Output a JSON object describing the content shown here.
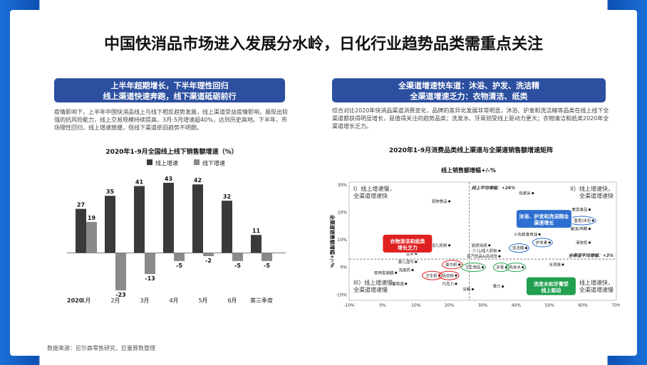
{
  "title": "中国快消品市场进入发展分水岭，日化行业趋势品类需重点关注",
  "left": {
    "box_line1": "上半年超期增长，下半年理性回归",
    "box_line2": "线上渠道快速奔跑，线下渠道砥砺前行",
    "paragraph": "疫情影响下，上半年中国快消品线上与线下相反趋势发展，线上渠道受益疫情影响，展现出较强的抗风险能力，线上交易规模持续提高，3月-5月增速超40%，达到历史高地。下半年，市场理性回归，线上增速放缓，但线下渠道依旧趋势不明朗。"
  },
  "right": {
    "box_line1": "全渠道增速快车道：沐浴、护发、洗洁精",
    "box_line2": "全渠道增速乏力：衣物清洁、纸类",
    "paragraph": "综合对比2020年快消品渠道消费变化，品牌的差异化发展非常明显，沐浴、护发和洗洁精等品类在线上线下全渠道都获得明显增长，是值得关注的趋势品类；洗发水、牙膏则受线上驱动力更大；衣物清洁和纸类2020年全渠道增长乏力。"
  },
  "source": "数据来源：尼尔森零售研究，巨量算数整理",
  "colors": {
    "online": "#3a3a3a",
    "offline": "#8a8a8a",
    "box": "#2c4fa0",
    "red": "#e02020",
    "green": "#22a050",
    "blue": "#2d6fd0"
  },
  "chart_data": [
    {
      "type": "bar",
      "title": "2020年1-9月全国线上线下销售额增速（%）",
      "categories": [
        "1月",
        "2月",
        "3月",
        "4月",
        "5月",
        "6月",
        "第三季度"
      ],
      "year_label": "2020",
      "series": [
        {
          "name": "线上增速",
          "values": [
            27,
            35,
            41,
            43,
            42,
            32,
            11
          ]
        },
        {
          "name": "线下增速",
          "values": [
            19,
            -23,
            -13,
            -5,
            -2,
            -5,
            -5
          ]
        }
      ],
      "ylim": [
        -26,
        46
      ]
    },
    {
      "type": "scatter",
      "title": "2020年1-9月消费品类线上渠道与全渠道销售额增速矩阵",
      "xlabel": "线上销售额增幅+/-%",
      "ylabel": "全渠道销售额增幅+/-%",
      "x_ticks": [
        "-10%",
        "0%",
        "10%",
        "20%",
        "30%",
        "40%",
        "50%",
        "60%",
        "70%"
      ],
      "y_ticks": [
        "30%",
        "20%",
        "10%",
        "0%",
        "-10%"
      ],
      "xlim": [
        -10,
        70
      ],
      "ylim": [
        -12,
        31
      ],
      "online_avg_label": "线上平均增幅：+26%",
      "omni_avg_label": "全渠道平均增幅：+3%",
      "online_avg": 26,
      "omni_avg": 3,
      "quadrants": {
        "q1": "I）线上增速慢，全渠道增速快",
        "q2": "II）线上增速快，全渠道增速快",
        "q3": "III）线上增速慢，全渠道增速慢",
        "q4": "IV）线上增速快，全渠道增速慢"
      },
      "points": [
        {
          "label": "宠物食品",
          "x": 20,
          "y": 24
        },
        {
          "label": "包装米",
          "x": 45,
          "y": 27
        },
        {
          "label": "麦类食品",
          "x": 62,
          "y": 21
        },
        {
          "label": "香皂/沐浴",
          "x": 63,
          "y": 17
        },
        {
          "label": "酱油/鸡精",
          "x": 62,
          "y": 14
        },
        {
          "label": "小包装食用油",
          "x": 47,
          "y": 12
        },
        {
          "label": "护发素",
          "x": 50,
          "y": 9
        },
        {
          "label": "液体奶",
          "x": 62,
          "y": 9
        },
        {
          "label": "婴儿奶粉",
          "x": 20,
          "y": 8
        },
        {
          "label": "厨房用纸",
          "x": 32,
          "y": 8
        },
        {
          "label": "洗洁精",
          "x": 43,
          "y": 7
        },
        {
          "label": "少儿/成人奶粉",
          "x": 35,
          "y": 6
        },
        {
          "label": "坚果",
          "x": 10,
          "y": 5
        },
        {
          "label": "有汽饮品&运动饮",
          "x": 35,
          "y": 4
        },
        {
          "label": "婴儿湿巾",
          "x": 10,
          "y": 2
        },
        {
          "label": "面巾纸",
          "x": 23,
          "y": 1
        },
        {
          "label": "卫生用品",
          "x": 30,
          "y": 0
        },
        {
          "label": "牙膏",
          "x": 37,
          "y": 0
        },
        {
          "label": "洗发水",
          "x": 42,
          "y": 0
        },
        {
          "label": "冰淇淋",
          "x": 54,
          "y": 1
        },
        {
          "label": "洗面奶",
          "x": 9,
          "y": -1
        },
        {
          "label": "卫生纸",
          "x": 17,
          "y": -3
        },
        {
          "label": "洗衣粉",
          "x": 22,
          "y": -3
        },
        {
          "label": "巧克力",
          "x": 22,
          "y": -6
        },
        {
          "label": "果汁",
          "x": 36,
          "y": -7
        },
        {
          "label": "牙刷",
          "x": 27,
          "y": -8
        },
        {
          "label": "即用型面膜",
          "x": 4,
          "y": -2
        },
        {
          "label": "葡萄酒",
          "x": 7,
          "y": -6
        }
      ],
      "callouts": {
        "top": "沐浴、护发和洗洁精全渠道增长",
        "left": "衣物清洁和纸类增长乏力",
        "bottom": "洗发水和牙膏受线上驱动"
      }
    }
  ]
}
